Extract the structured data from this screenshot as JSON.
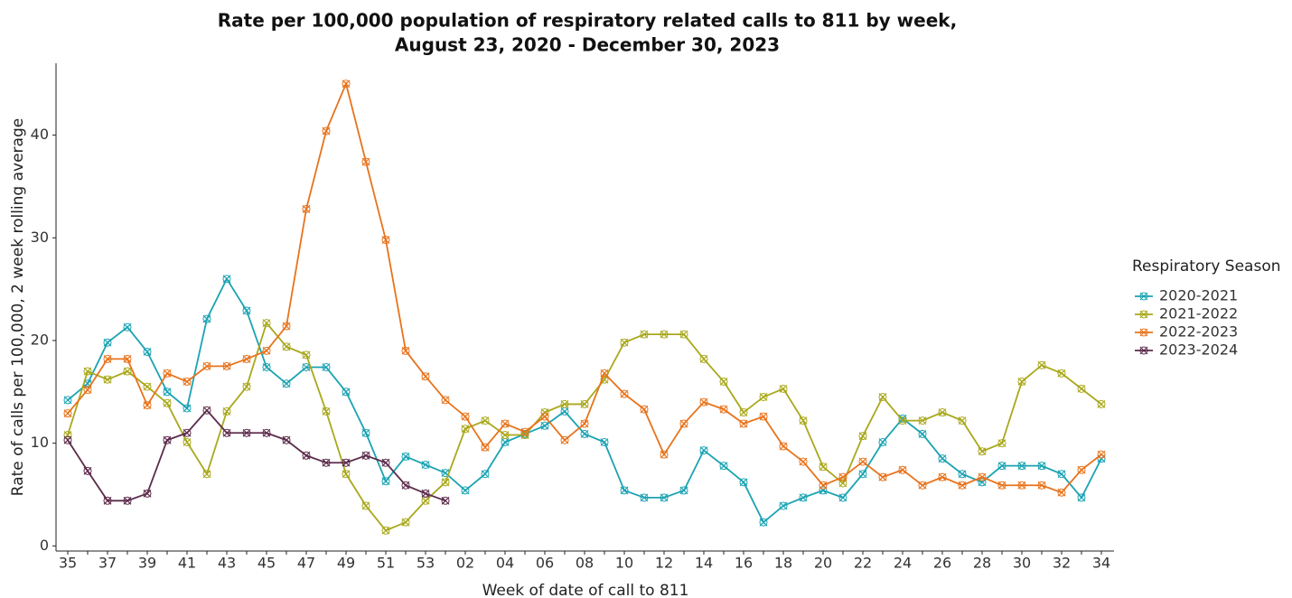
{
  "chart_data": {
    "type": "line",
    "title": "Rate per 100,000 population of respiratory related calls to 811 by week,",
    "subtitle": "August 23, 2020 - December 30, 2023",
    "x_label": "Week of date of call to 811",
    "y_label": "Rate of calls per 100,000, 2 week rolling average",
    "legend_title": "Respiratory Season",
    "categories": [
      "35",
      null,
      "37",
      null,
      "39",
      null,
      "41",
      null,
      "43",
      null,
      "45",
      null,
      "47",
      null,
      "49",
      null,
      "51",
      null,
      "53",
      null,
      "02",
      null,
      "04",
      null,
      "06",
      null,
      "08",
      null,
      "10",
      null,
      "12",
      null,
      "14",
      null,
      "16",
      null,
      "18",
      null,
      "20",
      null,
      "22",
      null,
      "24",
      null,
      "26",
      null,
      "28",
      null,
      "30",
      null,
      "32",
      null,
      "34"
    ],
    "ylim": [
      -0.5,
      47
    ],
    "yticks": [
      0,
      10,
      20,
      30,
      40
    ],
    "series": [
      {
        "name": "2020-2021",
        "color": "#1ba3b3",
        "values": [
          14.2,
          15.8,
          19.8,
          21.3,
          18.9,
          15,
          13.4,
          22.1,
          26,
          22.9,
          17.4,
          15.8,
          17.4,
          17.4,
          15,
          11,
          6.3,
          8.7,
          7.9,
          7.1,
          5.4,
          7,
          10.1,
          10.9,
          11.7,
          13.1,
          10.9,
          10.1,
          5.4,
          4.7,
          4.7,
          5.4,
          9.3,
          7.8,
          6.2,
          2.3,
          3.9,
          4.7,
          5.4,
          4.7,
          7,
          10.1,
          12.4,
          10.9,
          8.5,
          7,
          6.2,
          7.8,
          7.8,
          7.8,
          7,
          4.7,
          8.5
        ]
      },
      {
        "name": "2021-2022",
        "color": "#a9a81c",
        "values": [
          10.8,
          17,
          16.2,
          17,
          15.5,
          13.9,
          10.1,
          7,
          13.1,
          15.5,
          21.7,
          19.4,
          18.6,
          13.1,
          7,
          3.9,
          1.5,
          2.3,
          4.4,
          6.2,
          11.4,
          12.2,
          10.8,
          10.8,
          13,
          13.8,
          13.8,
          16.2,
          19.8,
          20.6,
          20.6,
          20.6,
          18.2,
          16,
          13,
          14.5,
          15.3,
          12.2,
          7.7,
          6.1,
          10.7,
          14.5,
          12.2,
          12.2,
          13,
          12.2,
          9.2,
          10,
          16,
          17.6,
          16.8,
          15.3,
          13.8
        ]
      },
      {
        "name": "2022-2023",
        "color": "#e8731c",
        "values": [
          12.9,
          15.2,
          18.2,
          18.2,
          13.7,
          16.8,
          16,
          17.5,
          17.5,
          18.2,
          19,
          21.4,
          32.8,
          40.4,
          45,
          37.4,
          29.8,
          19,
          16.5,
          14.2,
          12.6,
          9.6,
          11.9,
          11.1,
          12.6,
          10.3,
          11.9,
          16.8,
          14.8,
          13.3,
          8.9,
          11.9,
          14,
          13.3,
          11.9,
          12.6,
          9.7,
          8.2,
          5.9,
          6.7,
          8.2,
          6.7,
          7.4,
          5.9,
          6.7,
          5.9,
          6.7,
          5.9,
          5.9,
          5.9,
          5.2,
          7.4,
          8.9
        ]
      },
      {
        "name": "2023-2024",
        "color": "#5c2b4b",
        "values": [
          10.3,
          7.3,
          4.4,
          4.4,
          5.1,
          10.3,
          11,
          13.2,
          11,
          11,
          11,
          10.3,
          8.8,
          8.1,
          8.1,
          8.8,
          8.1,
          5.9,
          5.1,
          4.4,
          null,
          null,
          null,
          null,
          null,
          null,
          null,
          null,
          null,
          null,
          null,
          null,
          null,
          null,
          null,
          null,
          null,
          null,
          null,
          null,
          null,
          null,
          null,
          null,
          null,
          null,
          null,
          null,
          null,
          null,
          null,
          null,
          null
        ]
      }
    ]
  }
}
